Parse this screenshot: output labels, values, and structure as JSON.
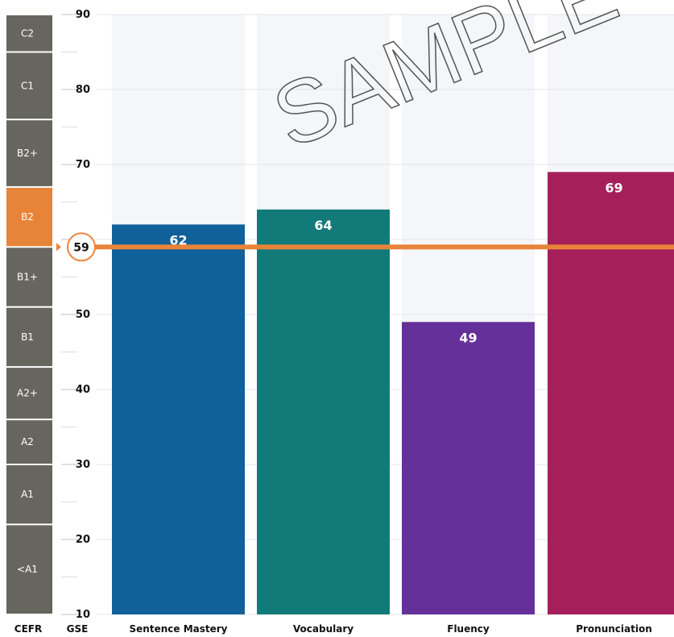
{
  "chart_data": {
    "type": "bar",
    "categories": [
      "Sentence Mastery",
      "Vocabulary",
      "Fluency",
      "Pronunciation"
    ],
    "values": [
      62,
      64,
      49,
      69
    ],
    "bar_colors": [
      "#10609a",
      "#137a7a",
      "#66309a",
      "#a51f5a"
    ],
    "ylim": [
      10,
      90
    ],
    "y_ticks": [
      10,
      20,
      30,
      40,
      50,
      60,
      70,
      80,
      90
    ],
    "y_tick_labels": [
      "10",
      "20",
      "30",
      "40",
      "50",
      "",
      "70",
      "80",
      "90"
    ],
    "axis_titles": {
      "cefr": "CEFR",
      "gse": "GSE"
    },
    "overall_score": {
      "value": 59,
      "label": "59",
      "color": "#e8843a"
    },
    "cefr_bands": [
      {
        "label": "<A1",
        "from": 10,
        "to": 22
      },
      {
        "label": "A1",
        "from": 22,
        "to": 30
      },
      {
        "label": "A2",
        "from": 30,
        "to": 36
      },
      {
        "label": "A2+",
        "from": 36,
        "to": 43
      },
      {
        "label": "B1",
        "from": 43,
        "to": 51
      },
      {
        "label": "B1+",
        "from": 51,
        "to": 59
      },
      {
        "label": "B2",
        "from": 59,
        "to": 67
      },
      {
        "label": "B2+",
        "from": 67,
        "to": 76
      },
      {
        "label": "C1",
        "from": 76,
        "to": 85
      },
      {
        "label": "C2",
        "from": 85,
        "to": 90
      }
    ],
    "highlighted_band": "B2",
    "band_color": "#66665e",
    "highlight_color": "#e8843a",
    "grid": true,
    "watermark": "SAMPLE"
  }
}
